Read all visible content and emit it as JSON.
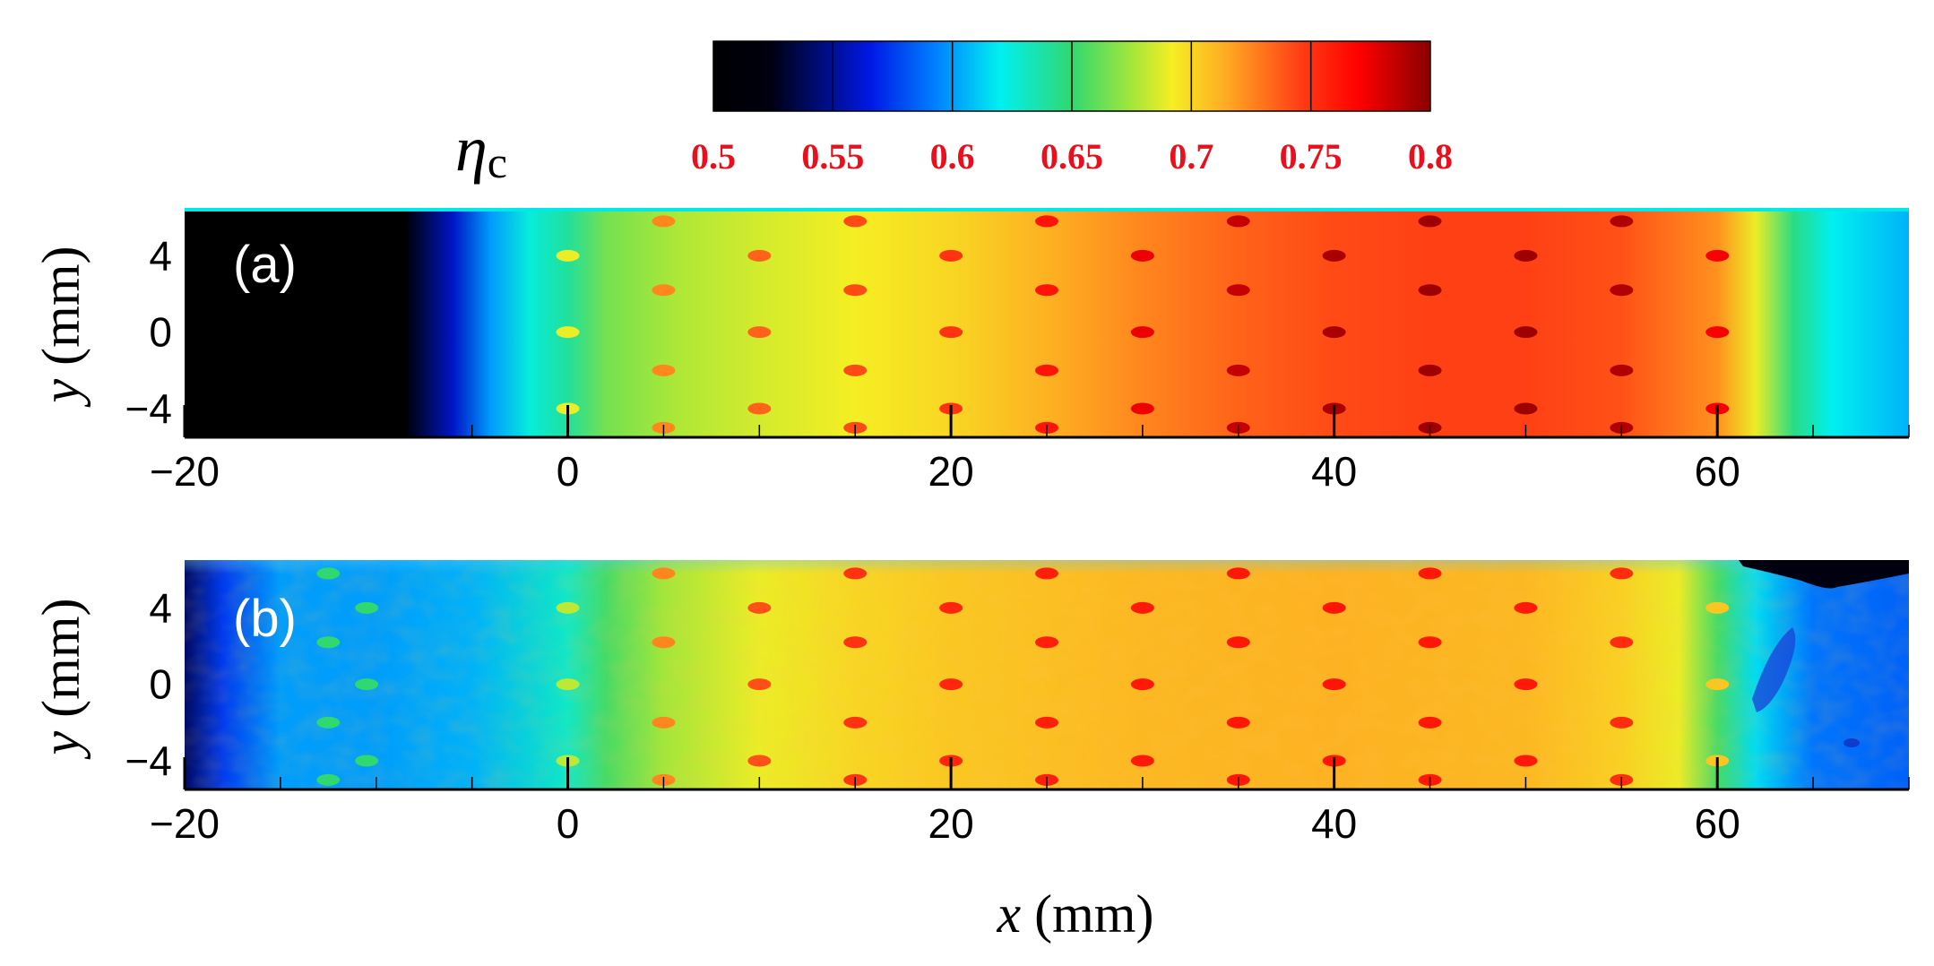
{
  "chart_data": {
    "type": "heatmap",
    "colorbar": {
      "title": "η",
      "title_subscript": "c",
      "range": [
        0.5,
        0.8
      ],
      "ticks": [
        0.5,
        0.55,
        0.6,
        0.65,
        0.7,
        0.75,
        0.8
      ],
      "tick_labels": [
        "0.5",
        "0.55",
        "0.6",
        "0.65",
        "0.7",
        "0.75",
        "0.8"
      ],
      "colormap": "jet",
      "tick_label_color": "#e8101c"
    },
    "panels": [
      {
        "label": "(a)",
        "xlabel": "x (mm)",
        "ylabel": "y (mm)",
        "xlim": [
          -20,
          70
        ],
        "ylim": [
          -5.5,
          6.5
        ],
        "xticks": [
          -20,
          0,
          20,
          40,
          60
        ],
        "xtick_labels": [
          "−20",
          "0",
          "20",
          "40",
          "60"
        ],
        "yticks": [
          4,
          0,
          -4
        ],
        "ytick_labels": [
          "4",
          "0",
          "−4"
        ],
        "field_profile_x": [
          -20,
          -8.5,
          -6,
          -4,
          -2,
          0,
          2,
          6,
          10,
          15,
          20,
          25,
          30,
          35,
          40,
          45,
          50,
          55,
          60,
          62,
          64,
          66,
          70
        ],
        "field_profile_eta": [
          0.5,
          0.5,
          0.56,
          0.6,
          0.625,
          0.64,
          0.665,
          0.678,
          0.685,
          0.692,
          0.7,
          0.712,
          0.725,
          0.735,
          0.742,
          0.745,
          0.745,
          0.74,
          0.722,
          0.69,
          0.645,
          0.62,
          0.605
        ]
      },
      {
        "label": "(b)",
        "xlabel": "x (mm)",
        "ylabel": "y (mm)",
        "xlim": [
          -20,
          70
        ],
        "ylim": [
          -5.5,
          6.5
        ],
        "xticks": [
          -20,
          0,
          20,
          40,
          60
        ],
        "xtick_labels": [
          "−20",
          "0",
          "20",
          "40",
          "60"
        ],
        "yticks": [
          4,
          0,
          -4
        ],
        "ytick_labels": [
          "4",
          "0",
          "−4"
        ],
        "field_profile_x": [
          -20,
          -18,
          -15,
          -10,
          -5,
          0,
          2,
          5,
          10,
          15,
          20,
          30,
          40,
          50,
          55,
          58,
          60,
          62,
          65,
          70
        ],
        "field_profile_eta": [
          0.54,
          0.575,
          0.6,
          0.6,
          0.605,
          0.63,
          0.655,
          0.675,
          0.69,
          0.7,
          0.705,
          0.71,
          0.712,
          0.71,
          0.702,
          0.69,
          0.655,
          0.615,
          0.59,
          0.585
        ]
      }
    ],
    "xlabel": "x (mm)"
  }
}
